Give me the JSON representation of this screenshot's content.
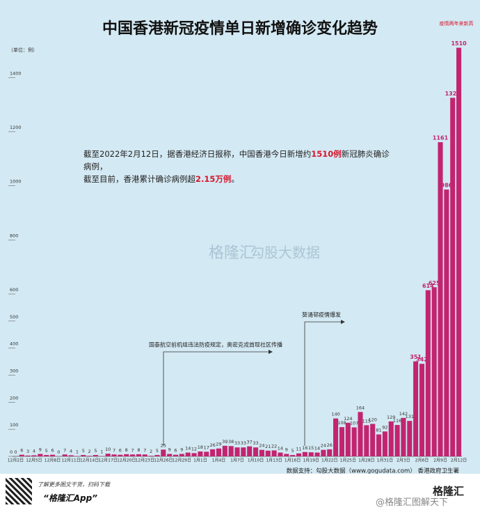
{
  "chart_data": {
    "type": "bar",
    "title": "中国香港新冠疫情单日新增确诊变化趋势",
    "unit_label": "（单位：例）",
    "categories": [
      "12月2日",
      null,
      null,
      "12月5日",
      null,
      null,
      "12月8日",
      null,
      null,
      "12月11日",
      null,
      null,
      "12月14日",
      null,
      null,
      "12月17日",
      null,
      null,
      "12月20日",
      null,
      null,
      "12月23日",
      null,
      null,
      "12月26日",
      null,
      null,
      "12月29日",
      null,
      null,
      "1月1日",
      null,
      null,
      "1月4日",
      null,
      null,
      "1月7日",
      null,
      null,
      "1月10日",
      null,
      null,
      "1月13日",
      null,
      null,
      "1月16日",
      null,
      null,
      "1月19日",
      null,
      null,
      "1月22日",
      null,
      null,
      "1月25日",
      null,
      null,
      "1月28日",
      null,
      null,
      "1月31日",
      null,
      null,
      "2月3日",
      null,
      null,
      "2月6日",
      null,
      null,
      "2月9日",
      null,
      null,
      "2月12日"
    ],
    "values": [
      0,
      6,
      3,
      4,
      9,
      5,
      6,
      0,
      7,
      4,
      1,
      5,
      2,
      5,
      1,
      10,
      7,
      6,
      8,
      7,
      8,
      7,
      2,
      5,
      25,
      9,
      6,
      9,
      14,
      12,
      18,
      17,
      26,
      29,
      39,
      38,
      33,
      33,
      37,
      33,
      24,
      21,
      22,
      14,
      9,
      5,
      11,
      16,
      15,
      14,
      24,
      26,
      140,
      108,
      124,
      107,
      164,
      115,
      120,
      81,
      92,
      129,
      116,
      142,
      131,
      351,
      342,
      614,
      625,
      1161,
      986,
      1325,
      1510
    ],
    "color": "#c2246f",
    "ylim": [
      0,
      1550
    ],
    "yticks": [
      0,
      100,
      200,
      300,
      400,
      500,
      600,
      800,
      1000,
      1200,
      1400
    ],
    "annotations": {
      "peak": "疫情两年来新高",
      "event1": "国泰航空前机组违法防疫规定，奥密克戎首现社区传播",
      "event2": "葵涌邨疫情爆发",
      "summary": [
        "截至2022年2月12日，据香港经济日报称，中国香港今日新增约",
        "1510例",
        "新冠肺炎确诊病例，",
        "截至目前，香港累计确诊病例超",
        "2.15万例",
        "。"
      ]
    },
    "source": "数据支持：勾股大数据（www.gogudata.com）   香港政府卫生署"
  },
  "footer": {
    "hint": "了解更多图文干货，扫码下载",
    "app": "“格隆汇App”",
    "brand": "格隆汇",
    "brand2": "勾股大数据",
    "watermark": "@格隆汇图解天下"
  }
}
